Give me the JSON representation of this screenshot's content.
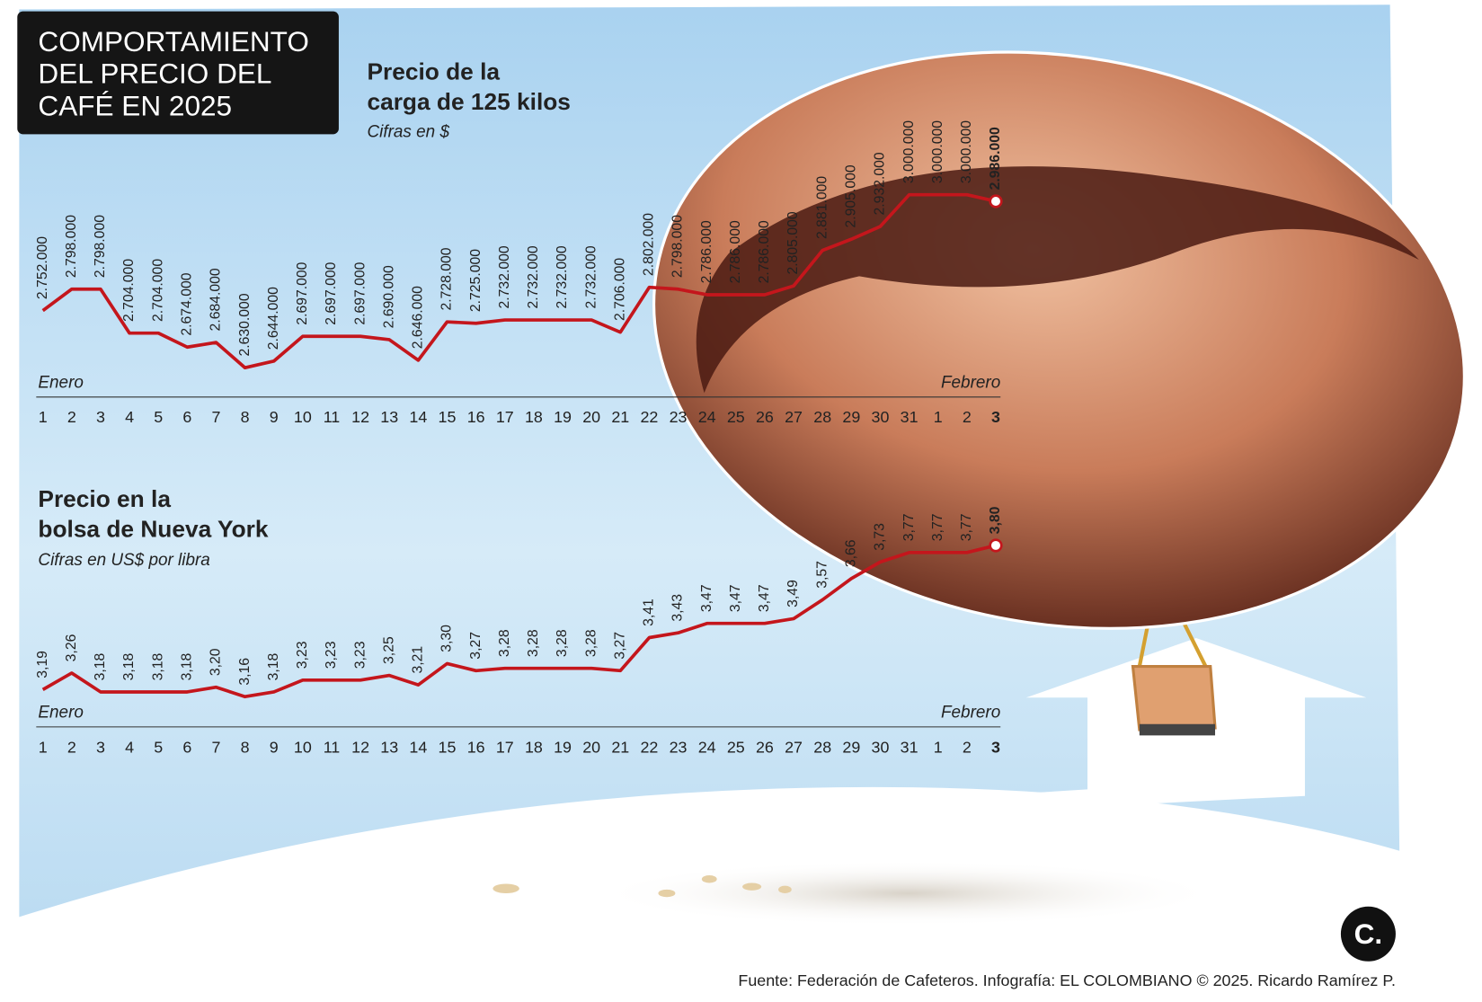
{
  "header": {
    "title": [
      "COMPORTAMIENTO",
      "DEL PRECIO DEL",
      "CAFÉ EN 2025"
    ]
  },
  "chart_data": [
    {
      "type": "line",
      "title": [
        "Precio de la",
        "carga de 125 kilos"
      ],
      "subtitle": "Cifras en $",
      "months": [
        "Enero",
        "Febrero"
      ],
      "categories": [
        "1",
        "2",
        "3",
        "4",
        "5",
        "6",
        "7",
        "8",
        "9",
        "10",
        "11",
        "12",
        "13",
        "14",
        "15",
        "16",
        "17",
        "18",
        "19",
        "20",
        "21",
        "22",
        "23",
        "24",
        "25",
        "26",
        "27",
        "28",
        "29",
        "30",
        "31",
        "1",
        "2",
        "3"
      ],
      "color": "#c4161c",
      "values": [
        2752000,
        2798000,
        2798000,
        2704000,
        2704000,
        2674000,
        2684000,
        2630000,
        2644000,
        2697000,
        2697000,
        2697000,
        2690000,
        2646000,
        2728000,
        2725000,
        2732000,
        2732000,
        2732000,
        2732000,
        2706000,
        2802000,
        2798000,
        2786000,
        2786000,
        2786000,
        2805000,
        2881000,
        2905000,
        2932000,
        3000000,
        3000000,
        3000000,
        2986000
      ],
      "value_labels": [
        "2.752.000",
        "2.798.000",
        "2.798.000",
        "2.704.000",
        "2.704.000",
        "2.674.000",
        "2.684.000",
        "2.630.000",
        "2.644.000",
        "2.697.000",
        "2.697.000",
        "2.697.000",
        "2.690.000",
        "2.646.000",
        "2.728.000",
        "2.725.000",
        "2.732.000",
        "2.732.000",
        "2.732.000",
        "2.732.000",
        "2.706.000",
        "2.802.000",
        "2.798.000",
        "2.786.000",
        "2.786.000",
        "2.786.000",
        "2.805.000",
        "2.881.000",
        "2.905.000",
        "2.932.000",
        "3.000.000",
        "3.000.000",
        "3.000.000",
        "2.986.000"
      ],
      "ylim": [
        2600000,
        3050000
      ]
    },
    {
      "type": "line",
      "title": [
        "Precio en la",
        "bolsa de Nueva York"
      ],
      "subtitle": "Cifras en US$ por libra",
      "months": [
        "Enero",
        "Febrero"
      ],
      "categories": [
        "1",
        "2",
        "3",
        "4",
        "5",
        "6",
        "7",
        "8",
        "9",
        "10",
        "11",
        "12",
        "13",
        "14",
        "15",
        "16",
        "17",
        "18",
        "19",
        "20",
        "21",
        "22",
        "23",
        "24",
        "25",
        "26",
        "27",
        "28",
        "29",
        "30",
        "31",
        "1",
        "2",
        "3"
      ],
      "color": "#c4161c",
      "values": [
        3.19,
        3.26,
        3.18,
        3.18,
        3.18,
        3.18,
        3.2,
        3.16,
        3.18,
        3.23,
        3.23,
        3.23,
        3.25,
        3.21,
        3.3,
        3.27,
        3.28,
        3.28,
        3.28,
        3.28,
        3.27,
        3.41,
        3.43,
        3.47,
        3.47,
        3.47,
        3.49,
        3.57,
        3.66,
        3.73,
        3.77,
        3.77,
        3.77,
        3.8
      ],
      "value_labels": [
        "3,19",
        "3,26",
        "3,18",
        "3,18",
        "3,18",
        "3,18",
        "3,20",
        "3,16",
        "3,18",
        "3,23",
        "3,23",
        "3,23",
        "3,25",
        "3,21",
        "3,30",
        "3,27",
        "3,28",
        "3,28",
        "3,28",
        "3,28",
        "3,27",
        "3,41",
        "3,43",
        "3,47",
        "3,47",
        "3,47",
        "3,49",
        "3,57",
        "3,66",
        "3,73",
        "3,77",
        "3,77",
        "3,77",
        "3,80"
      ],
      "ylim": [
        3.1,
        3.9
      ]
    }
  ],
  "source": "Fuente: Federación de Cafeteros. Infografía: EL COLOMBIANO © 2025. Ricardo Ramírez P.",
  "logo": "C."
}
